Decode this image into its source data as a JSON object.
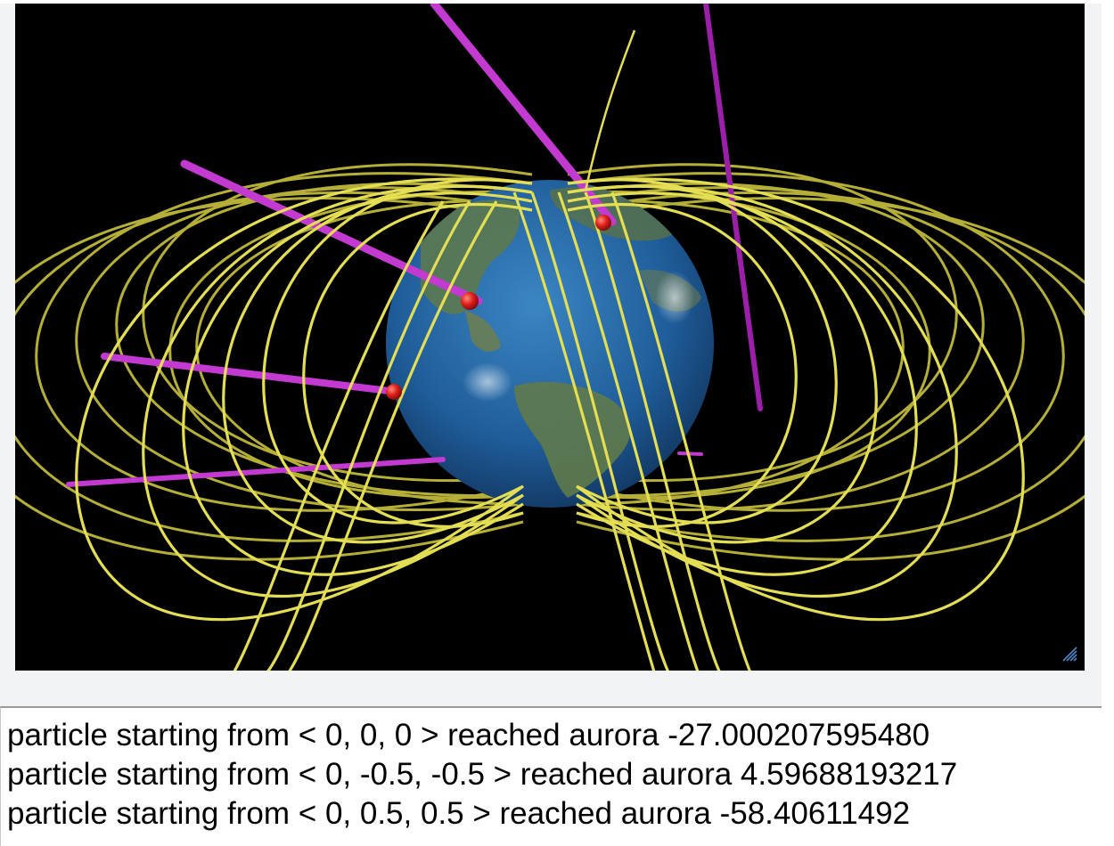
{
  "scene": {
    "description_icon": "earth-globe",
    "colors": {
      "background": "#000000",
      "field_lines": "#d8d24a",
      "particle_trails": "#cc33cc",
      "aurora_markers": "#e0201a",
      "ocean": "#1f5d9a",
      "land": "#5f7a4a"
    },
    "resize_icon": "resize-grip-icon"
  },
  "output": {
    "lines": [
      "particle starting from < 0, 0, 0 > reached aurora -27.000207595480",
      "particle starting from < 0, -0.5, -0.5 > reached aurora 4.59688193217",
      "particle starting from < 0, 0.5, 0.5 > reached aurora -58.40611492"
    ]
  }
}
